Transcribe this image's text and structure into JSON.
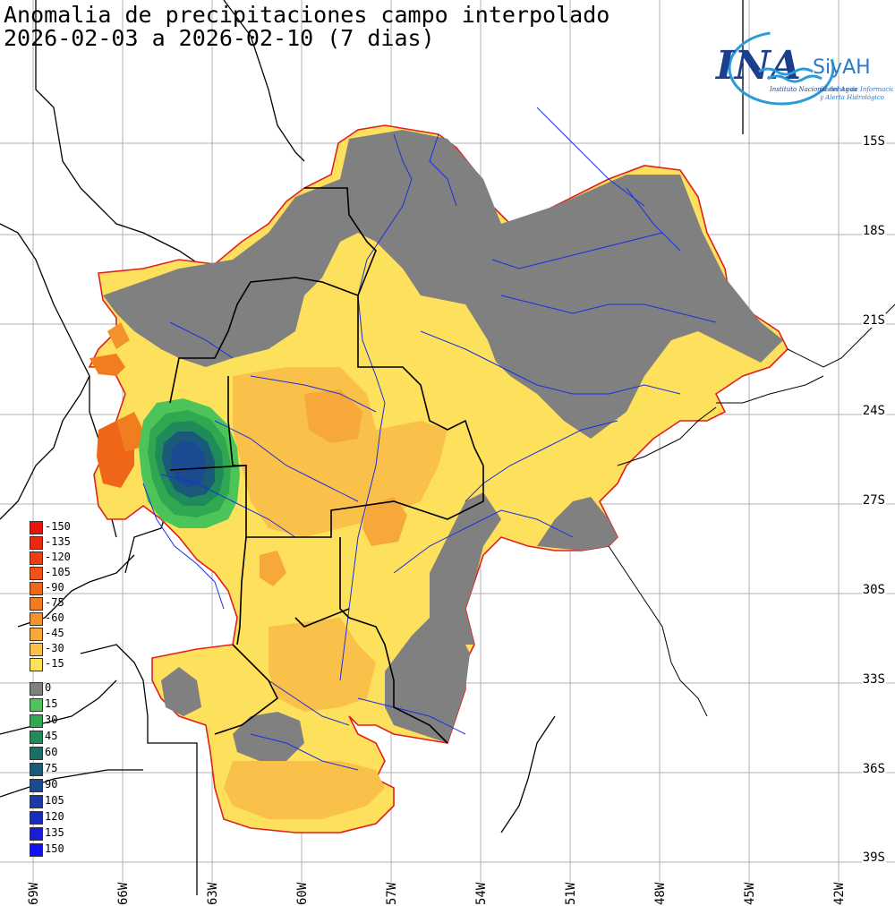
{
  "title": {
    "line1": "Anomalia de precipitaciones campo interpolado",
    "line2": "2026-02-03 a 2026-02-10 (7 dias)"
  },
  "logo": {
    "main": "INA",
    "brand": "SiyAH",
    "sub1": "Instituto Nacional del Agua",
    "sub2": "Sistemas de Información",
    "sub3": "y Alerta Hidrológico"
  },
  "latitudes": [
    "15S",
    "18S",
    "21S",
    "24S",
    "27S",
    "30S",
    "33S",
    "36S",
    "39S"
  ],
  "longitudes": [
    "69W",
    "66W",
    "63W",
    "60W",
    "57W",
    "54W",
    "51W",
    "48W",
    "45W",
    "42W"
  ],
  "legend": {
    "items": [
      {
        "label": "-150",
        "color": "#e8140e"
      },
      {
        "label": "-135",
        "color": "#ea2a10"
      },
      {
        "label": "-120",
        "color": "#ec3e12"
      },
      {
        "label": "-105",
        "color": "#ee5214"
      },
      {
        "label": "-90",
        "color": "#f06618"
      },
      {
        "label": "-75",
        "color": "#f27c20"
      },
      {
        "label": "-60",
        "color": "#f4922c"
      },
      {
        "label": "-45",
        "color": "#f6a83a"
      },
      {
        "label": "-30",
        "color": "#f9c04a"
      },
      {
        "label": "-15",
        "color": "#fde05c"
      },
      {
        "label": "0",
        "color": "#808080"
      },
      {
        "label": "15",
        "color": "#4dc45a"
      },
      {
        "label": "30",
        "color": "#2fa84f"
      },
      {
        "label": "45",
        "color": "#1f8a5a"
      },
      {
        "label": "60",
        "color": "#1a7066"
      },
      {
        "label": "75",
        "color": "#1a5a78"
      },
      {
        "label": "90",
        "color": "#1a4a90"
      },
      {
        "label": "105",
        "color": "#1a3aa8"
      },
      {
        "label": "120",
        "color": "#1a2cc0"
      },
      {
        "label": "135",
        "color": "#1a1cd8"
      },
      {
        "label": "150",
        "color": "#1010f0"
      }
    ]
  }
}
